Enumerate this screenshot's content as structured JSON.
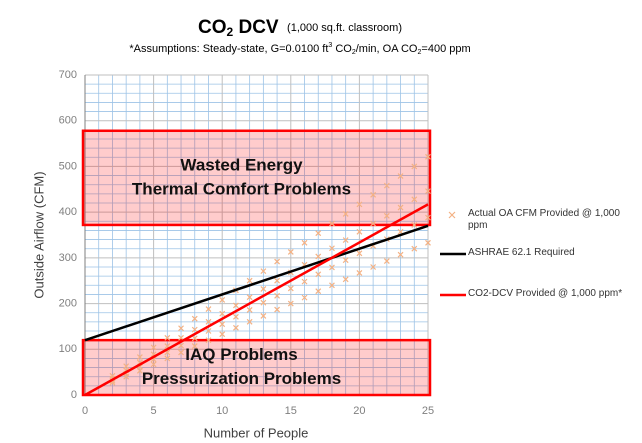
{
  "chart_data": {
    "type": "line",
    "title": [
      "CO",
      "2",
      " DCV"
    ],
    "title_note": "(1,000 sq.ft. classroom)",
    "subtitle": [
      "*Assumptions: Steady-state, G=0.0100 ft",
      "3",
      " CO",
      "2",
      "/min, OA CO",
      "2",
      "=400 ppm"
    ],
    "xlabel": "Number of People",
    "ylabel": "Outside Airflow (CFM)",
    "xlim": [
      0,
      25
    ],
    "ylim": [
      0,
      700
    ],
    "xticks": [
      0,
      5,
      10,
      15,
      20,
      25
    ],
    "yticks": [
      0,
      100,
      200,
      300,
      400,
      500,
      600,
      700
    ],
    "xminorticks": [
      1,
      2,
      3,
      4,
      6,
      7,
      8,
      9,
      11,
      12,
      13,
      14,
      16,
      17,
      18,
      19,
      21,
      22,
      23,
      24
    ],
    "yminorticks": [
      20,
      40,
      60,
      80,
      120,
      140,
      160,
      180,
      220,
      240,
      260,
      280,
      320,
      340,
      360,
      380,
      420,
      440,
      460,
      480,
      520,
      540,
      560,
      580,
      620,
      640,
      660,
      680
    ],
    "grid": true,
    "legend": "right",
    "regions": [
      {
        "text": [
          "Wasted Energy",
          "Thermal Comfort Problems"
        ],
        "y_range": [
          372,
          578
        ],
        "color": "#ff0000"
      },
      {
        "text": [
          "IAQ Problems",
          "Pressurization Problems"
        ],
        "y_range": [
          0,
          120
        ],
        "color": "#ff0000"
      }
    ],
    "series": [
      {
        "name": "Actual OA CFM Provided @ 1,000 ppm",
        "type": "scatter",
        "color": "#f4b183",
        "x": [
          2,
          2,
          2,
          2,
          3,
          3,
          3,
          3,
          4,
          4,
          4,
          4,
          5,
          5,
          5,
          5,
          6,
          6,
          6,
          6,
          7,
          7,
          7,
          7,
          8,
          8,
          8,
          8,
          9,
          9,
          9,
          9,
          10,
          10,
          10,
          10,
          11,
          11,
          11,
          11,
          12,
          12,
          12,
          12,
          13,
          13,
          13,
          13,
          14,
          14,
          14,
          14,
          15,
          15,
          15,
          15,
          16,
          16,
          16,
          16,
          17,
          17,
          17,
          17,
          18,
          18,
          18,
          18,
          19,
          19,
          19,
          19,
          20,
          20,
          20,
          20,
          21,
          21,
          21,
          21,
          22,
          22,
          22,
          22,
          23,
          23,
          23,
          23,
          24,
          24,
          24,
          24,
          25,
          25,
          25,
          25
        ],
        "values": [
          27,
          31,
          36,
          42,
          40,
          47,
          54,
          63,
          53,
          62,
          71,
          83,
          67,
          78,
          89,
          104,
          80,
          93,
          107,
          125,
          93,
          108,
          125,
          146,
          107,
          124,
          143,
          167,
          120,
          140,
          160,
          188,
          133,
          155,
          178,
          208,
          147,
          171,
          196,
          229,
          160,
          186,
          214,
          250,
          173,
          202,
          232,
          271,
          187,
          217,
          250,
          292,
          200,
          233,
          268,
          313,
          213,
          248,
          285,
          333,
          227,
          264,
          303,
          354,
          240,
          279,
          321,
          375,
          253,
          295,
          339,
          396,
          267,
          310,
          357,
          417,
          280,
          326,
          375,
          438,
          293,
          341,
          392,
          458,
          307,
          357,
          410,
          479,
          320,
          372,
          428,
          500,
          333,
          388,
          446,
          521
        ]
      },
      {
        "name": "ASHRAE 62.1 Required",
        "type": "line",
        "color": "#000000",
        "x": [
          0,
          25
        ],
        "values": [
          120,
          370
        ]
      },
      {
        "name": "CO2-DCV Provided @ 1,000 ppm*",
        "type": "line",
        "color": "#ff0000",
        "x": [
          0,
          25
        ],
        "values": [
          0,
          417
        ]
      }
    ]
  }
}
